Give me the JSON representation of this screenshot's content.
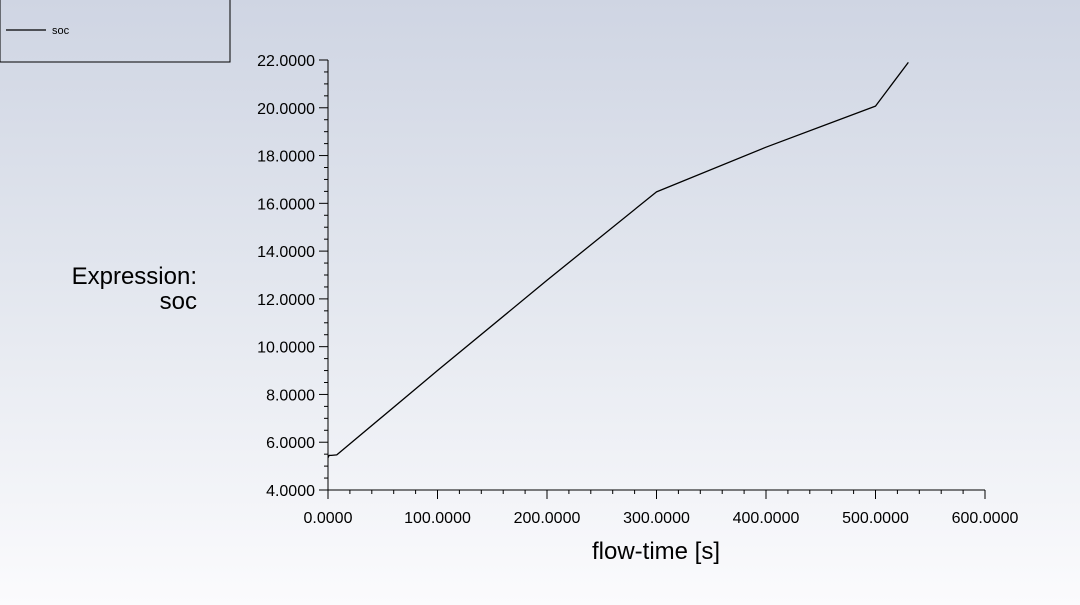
{
  "chart_data": {
    "type": "line",
    "title": "",
    "xlabel": "flow-time [s]",
    "ylabel_lines": [
      "Expression:",
      "soc"
    ],
    "xlim": [
      0,
      600
    ],
    "ylim": [
      4,
      22
    ],
    "x_ticks": [
      "0.0000",
      "100.0000",
      "200.0000",
      "300.0000",
      "400.0000",
      "500.0000",
      "600.0000"
    ],
    "y_ticks": [
      "4.0000",
      "6.0000",
      "8.0000",
      "10.0000",
      "12.0000",
      "14.0000",
      "16.0000",
      "18.0000",
      "20.0000",
      "22.0000"
    ],
    "grid": false,
    "legend_position": "top-left",
    "series": [
      {
        "name": "soc",
        "color": "#000000",
        "x": [
          0,
          1,
          3,
          8,
          100,
          200,
          300,
          400,
          500,
          530
        ],
        "y": [
          5.35,
          5.45,
          5.45,
          5.47,
          9.0,
          12.78,
          16.48,
          18.35,
          20.07,
          21.9
        ]
      }
    ]
  }
}
